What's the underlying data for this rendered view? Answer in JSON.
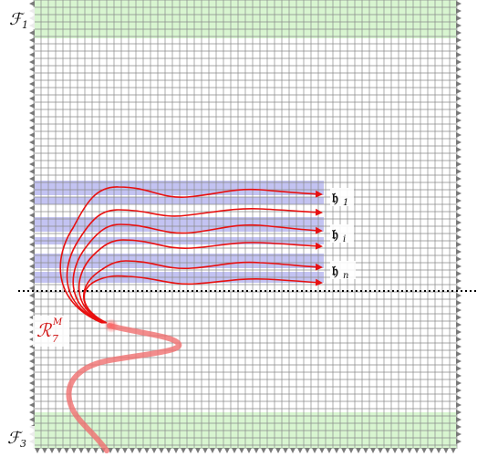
{
  "labels": {
    "f1": "ℱ",
    "f1_sub": "1",
    "f3": "ℱ",
    "f3_sub": "3",
    "r7": "ℛ",
    "r7_sub": "7",
    "r7_sup": "M",
    "h1": "𝔥",
    "h1_sub": "1",
    "hi": "𝔥",
    "hi_sub": "i",
    "hn": "𝔥",
    "hn_sub": "n"
  },
  "colors": {
    "grid": "#8a8a8a",
    "arrow": "#7a7a7a",
    "green_band": "#d8f5d0",
    "blue_band": "#b8b8f0",
    "path_red": "#e81010",
    "thick_path": "#f07070",
    "dotted_line": "#000000"
  }
}
